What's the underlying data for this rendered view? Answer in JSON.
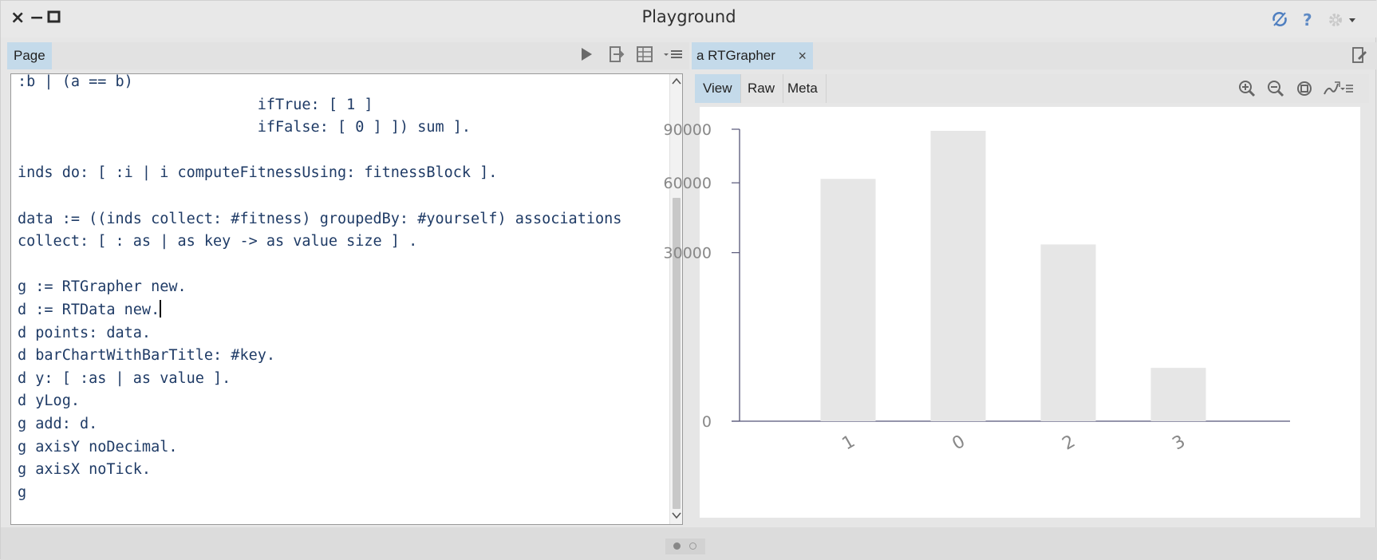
{
  "window": {
    "title": "Playground",
    "close_glyph": "×",
    "minimize_glyph": "−",
    "maximize_glyph": "□",
    "sync_icon": "sync-icon",
    "help_label": "?",
    "settings_icon": "gear-icon"
  },
  "left_pane": {
    "tab_label": "Page",
    "toolbar_icons": [
      "run-icon",
      "debug-icon",
      "inspect-icon",
      "menu-icon"
    ],
    "code_lines": [
      ":b | (a == b)",
      "                           ifTrue: [ 1 ]",
      "                           ifFalse: [ 0 ] ]) sum ].",
      "",
      "inds do: [ :i | i computeFitnessUsing: fitnessBlock ].",
      "",
      "data := ((inds collect: #fitness) groupedBy: #yourself) associations",
      "collect: [ : as | as key -> as value size ] .",
      "",
      "g := RTGrapher new.",
      "d := RTData new.",
      "d points: data.",
      "d barChartWithBarTitle: #key.",
      "d y: [ :as | as value ].",
      "d yLog.",
      "g add: d.",
      "g axisY noDecimal.",
      "g axisX noTick.",
      "g"
    ]
  },
  "right_pane": {
    "tab_label": "a RTGrapher",
    "tab_close": "×",
    "subtabs": [
      "View",
      "Raw",
      "Meta"
    ],
    "active_subtab": "View",
    "view_icons": [
      "zoom-in-icon",
      "zoom-out-icon",
      "zoom-fit-icon",
      "export-icon"
    ]
  },
  "chart_data": {
    "type": "bar",
    "categories": [
      "1",
      "0",
      "2",
      "3"
    ],
    "values": [
      62000,
      89000,
      33000,
      3000
    ],
    "yscale": "log",
    "yticks": [
      0,
      30000,
      60000,
      90000
    ],
    "ytick_labels": [
      "0",
      "30000",
      "60000",
      "90000"
    ],
    "title": "",
    "xlabel": "",
    "ylabel": "",
    "bar_color": "#e6e6e6",
    "axis_color": "#555577"
  },
  "colors": {
    "tab_active": "#c4daea",
    "background": "#e6e6e6",
    "code_text": "#1f3b66"
  }
}
